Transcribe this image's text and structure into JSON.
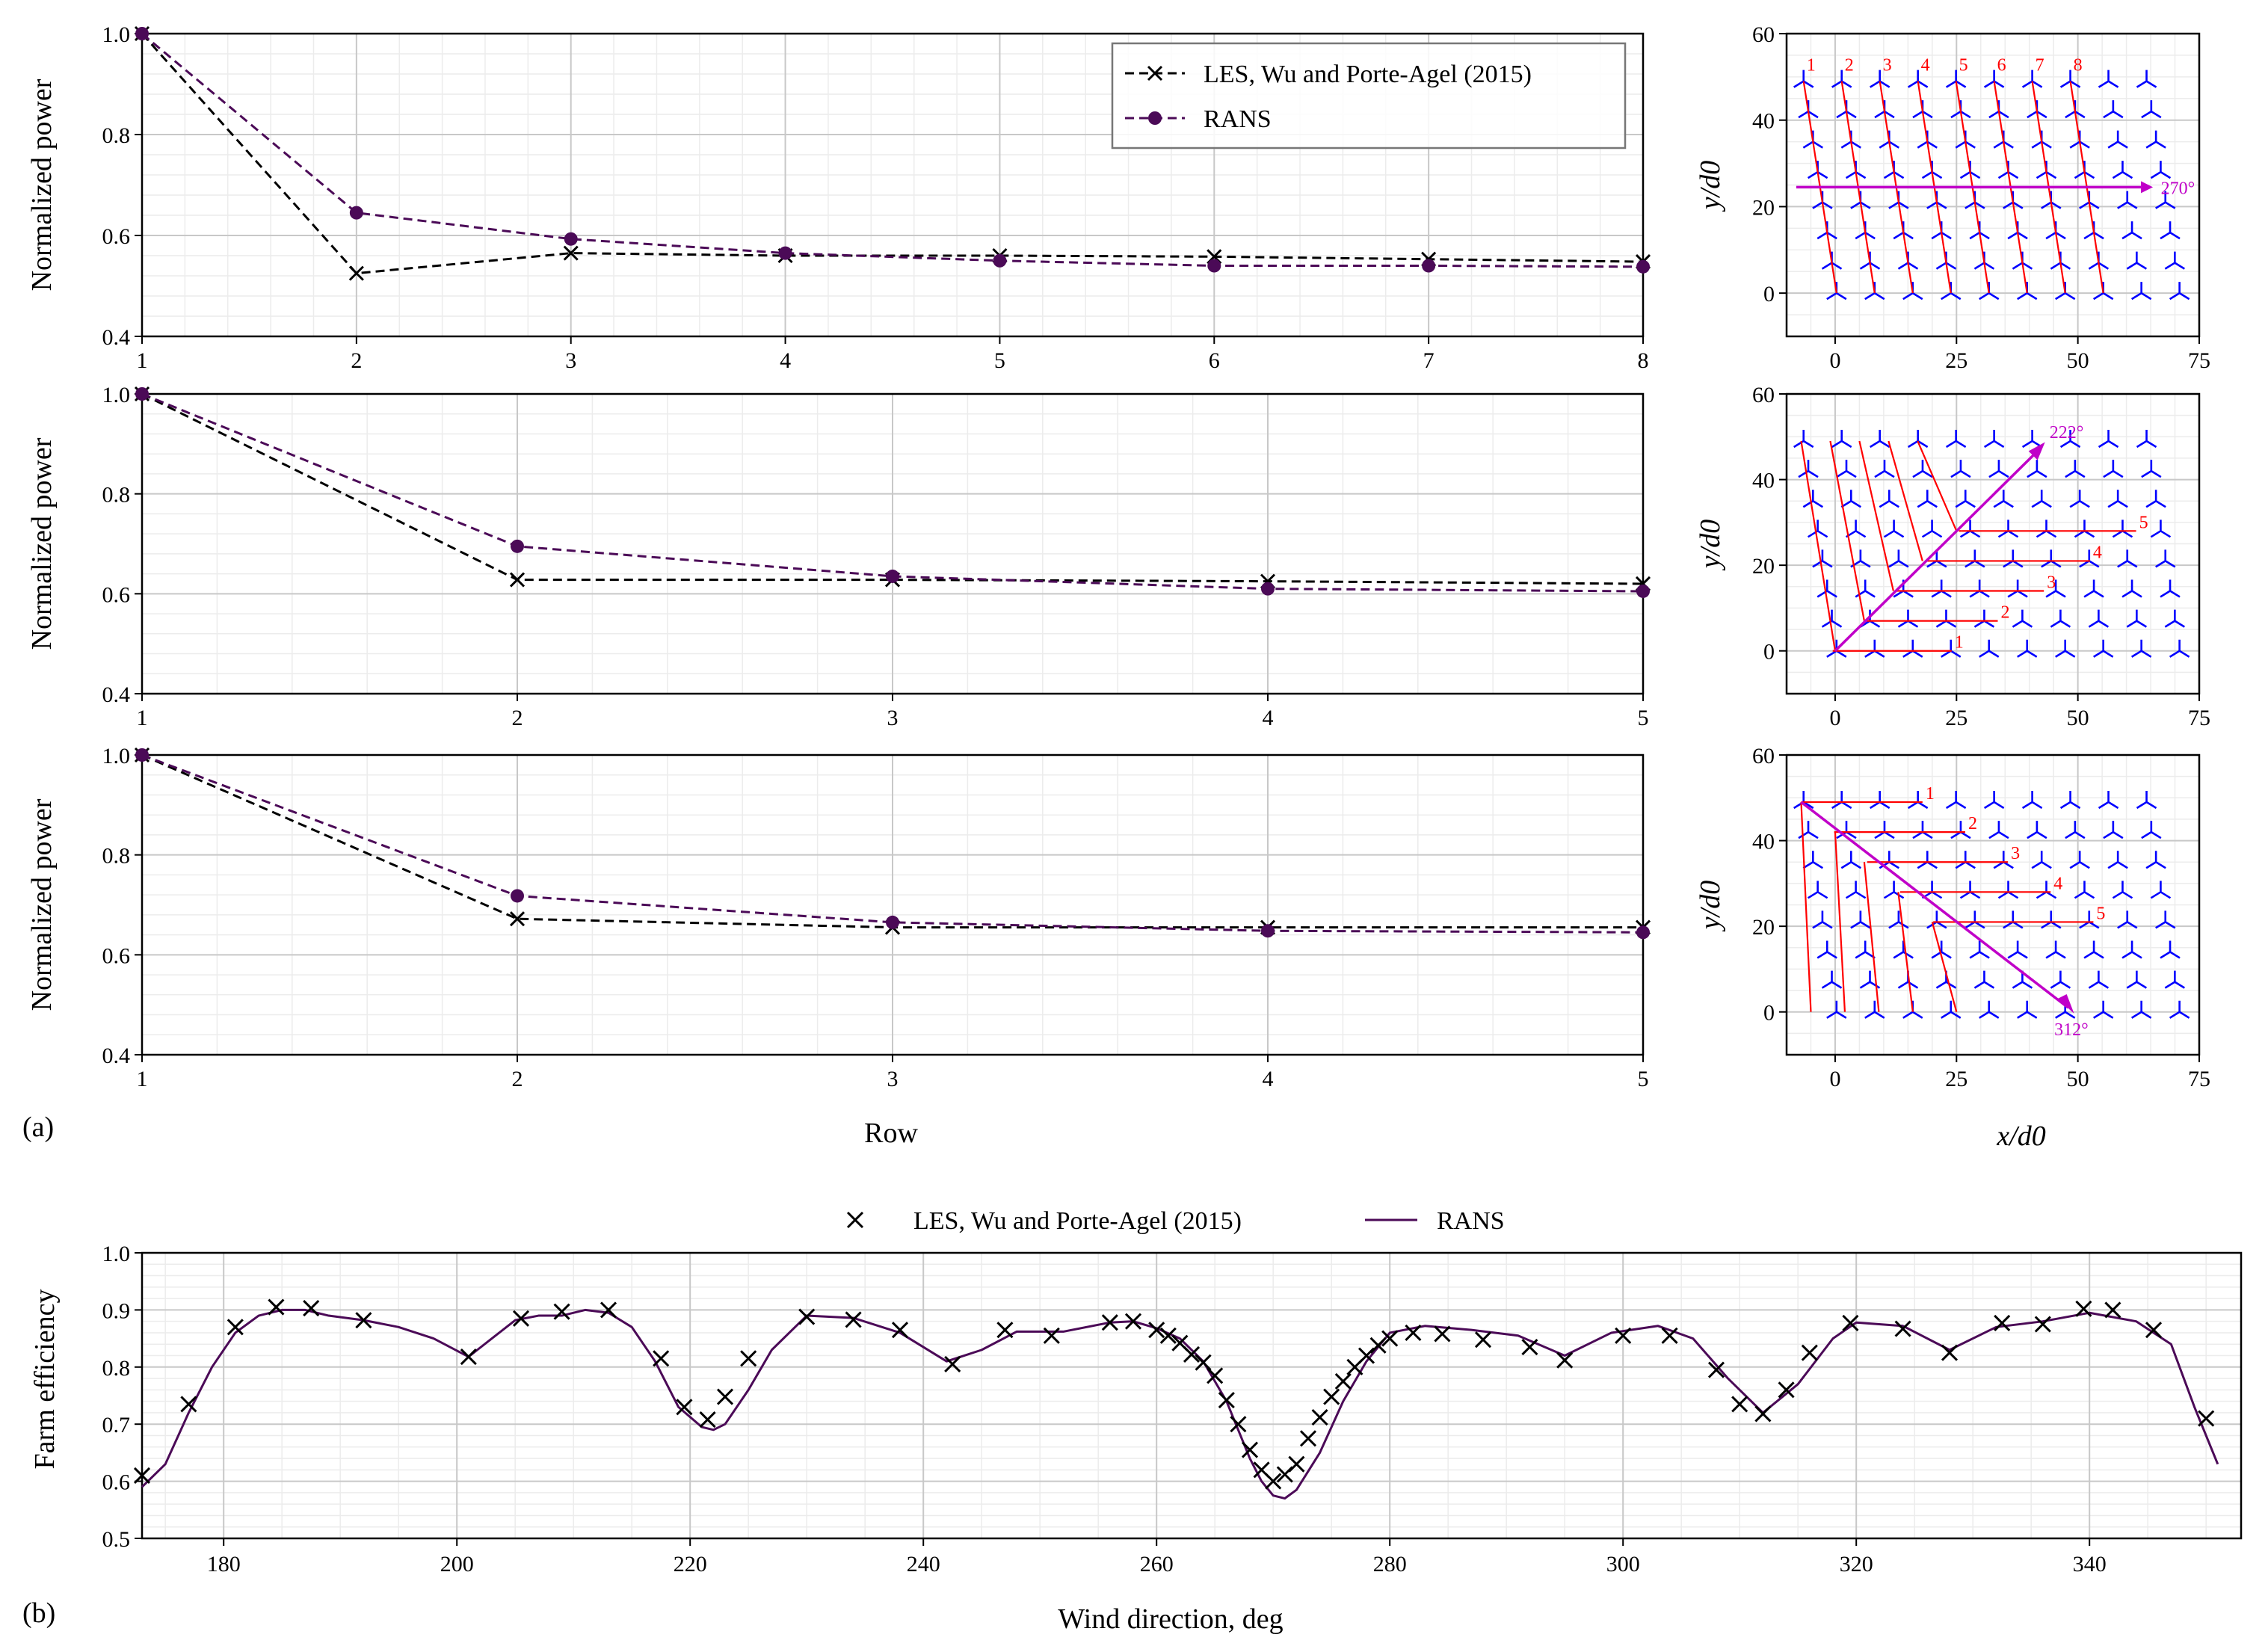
{
  "panel_labels": [
    "(a)",
    "(b)"
  ],
  "colors": {
    "les": "#000000",
    "rans": "#4b0a57",
    "turbine": "#0000ff",
    "row_line": "#ff0000",
    "wind_arrow": "#c000c8"
  },
  "chart_data": [
    {
      "type": "line",
      "id": "power-270",
      "ylabel": "Normalized power",
      "xlabel": "",
      "xlim": [
        1,
        8
      ],
      "ylim": [
        0.4,
        1.0
      ],
      "xticks": [
        1,
        2,
        3,
        4,
        5,
        6,
        7,
        8
      ],
      "yticks": [
        "0.4",
        "0.6",
        "0.8",
        "1.0"
      ],
      "x": [
        1,
        2,
        3,
        4,
        5,
        6,
        7,
        8
      ],
      "series": [
        {
          "name": "LES, Wu and Porte-Agel (2015)",
          "marker": "x",
          "values": [
            1.0,
            0.525,
            0.565,
            0.56,
            0.56,
            0.558,
            0.553,
            0.548
          ]
        },
        {
          "name": "RANS",
          "marker": "o",
          "values": [
            1.0,
            0.645,
            0.593,
            0.565,
            0.55,
            0.54,
            0.54,
            0.538
          ]
        }
      ],
      "legend": {
        "position": "top-right",
        "entries": [
          "LES, Wu and Porte-Agel (2015)",
          "RANS"
        ]
      }
    },
    {
      "type": "line",
      "id": "power-222",
      "ylabel": "Normalized power",
      "xlabel": "",
      "xlim": [
        1,
        5
      ],
      "ylim": [
        0.4,
        1.0
      ],
      "xticks": [
        1,
        2,
        3,
        4,
        5
      ],
      "yticks": [
        "0.4",
        "0.6",
        "0.8",
        "1.0"
      ],
      "x": [
        1,
        2,
        3,
        4,
        5
      ],
      "series": [
        {
          "name": "LES, Wu and Porte-Agel (2015)",
          "marker": "x",
          "values": [
            1.0,
            0.628,
            0.628,
            0.625,
            0.62
          ]
        },
        {
          "name": "RANS",
          "marker": "o",
          "values": [
            1.0,
            0.695,
            0.635,
            0.61,
            0.605
          ]
        }
      ]
    },
    {
      "type": "line",
      "id": "power-312",
      "ylabel": "Normalized power",
      "xlabel": "Row",
      "xlim": [
        1,
        5
      ],
      "ylim": [
        0.4,
        1.0
      ],
      "xticks": [
        1,
        2,
        3,
        4,
        5
      ],
      "yticks": [
        "0.4",
        "0.6",
        "0.8",
        "1.0"
      ],
      "x": [
        1,
        2,
        3,
        4,
        5
      ],
      "series": [
        {
          "name": "LES, Wu and Porte-Agel (2015)",
          "marker": "x",
          "values": [
            1.0,
            0.672,
            0.655,
            0.655,
            0.655
          ]
        },
        {
          "name": "RANS",
          "marker": "o",
          "values": [
            1.0,
            0.718,
            0.665,
            0.648,
            0.645
          ]
        }
      ]
    },
    {
      "type": "scatter",
      "id": "layout-270",
      "xlabel": "",
      "ylabel": "y/d0",
      "xlim": [
        -10,
        75
      ],
      "ylim": [
        -10,
        60
      ],
      "xticks": [
        "0",
        "25",
        "50",
        "75"
      ],
      "yticks": [
        "0",
        "20",
        "40",
        "60"
      ],
      "wind_direction_label": "270°",
      "row_labels": [
        "1",
        "2",
        "3",
        "4",
        "5",
        "6",
        "7",
        "8"
      ]
    },
    {
      "type": "scatter",
      "id": "layout-222",
      "xlabel": "",
      "ylabel": "y/d0",
      "xlim": [
        -10,
        75
      ],
      "ylim": [
        -10,
        60
      ],
      "xticks": [
        "0",
        "25",
        "50",
        "75"
      ],
      "yticks": [
        "0",
        "20",
        "40",
        "60"
      ],
      "wind_direction_label": "222°",
      "row_labels": [
        "1",
        "2",
        "3",
        "4",
        "5"
      ]
    },
    {
      "type": "scatter",
      "id": "layout-312",
      "xlabel": "x/d0",
      "ylabel": "y/d0",
      "xlim": [
        -10,
        75
      ],
      "ylim": [
        -10,
        60
      ],
      "xticks": [
        "0",
        "25",
        "50",
        "75"
      ],
      "yticks": [
        "0",
        "20",
        "40",
        "60"
      ],
      "wind_direction_label": "312°",
      "row_labels": [
        "1",
        "2",
        "3",
        "4",
        "5"
      ]
    },
    {
      "type": "line",
      "id": "farm-efficiency",
      "ylabel": "Farm efficiency",
      "xlabel": "Wind direction, deg",
      "xlim": [
        173,
        353
      ],
      "ylim": [
        0.5,
        1.0
      ],
      "xticks": [
        "180",
        "200",
        "220",
        "240",
        "260",
        "280",
        "300",
        "320",
        "340"
      ],
      "yticks": [
        "0.5",
        "0.6",
        "0.7",
        "0.8",
        "0.9",
        "1.0"
      ],
      "legend": {
        "position": "top-center",
        "entries": [
          "LES, Wu and Porte-Agel (2015)",
          "RANS"
        ]
      },
      "series": [
        {
          "name": "LES, Wu and Porte-Agel (2015)",
          "marker": "x",
          "x": [
            173,
            177,
            181,
            184.5,
            187.5,
            192,
            201,
            205.5,
            209,
            213,
            217.5,
            219.5,
            221.5,
            223,
            225,
            230,
            234,
            238,
            242.5,
            247,
            251,
            256,
            258,
            260,
            261,
            262,
            263,
            264,
            265,
            266,
            267,
            268,
            269,
            270,
            271,
            272,
            273,
            274,
            275,
            276,
            277,
            278,
            279,
            280,
            282,
            284.5,
            288,
            292,
            295,
            300,
            304,
            308,
            310,
            312,
            314,
            316,
            319.5,
            324,
            328,
            332.5,
            336,
            339.5,
            342,
            345.5,
            350
          ],
          "y": [
            0.61,
            0.735,
            0.87,
            0.905,
            0.903,
            0.882,
            0.818,
            0.885,
            0.897,
            0.9,
            0.815,
            0.73,
            0.708,
            0.748,
            0.815,
            0.888,
            0.883,
            0.865,
            0.805,
            0.865,
            0.855,
            0.878,
            0.88,
            0.865,
            0.855,
            0.842,
            0.822,
            0.808,
            0.785,
            0.742,
            0.7,
            0.655,
            0.62,
            0.6,
            0.612,
            0.63,
            0.675,
            0.712,
            0.748,
            0.775,
            0.8,
            0.82,
            0.838,
            0.85,
            0.86,
            0.858,
            0.848,
            0.835,
            0.812,
            0.855,
            0.855,
            0.795,
            0.735,
            0.718,
            0.76,
            0.825,
            0.877,
            0.867,
            0.825,
            0.877,
            0.875,
            0.902,
            0.9,
            0.865,
            0.71
          ]
        },
        {
          "name": "RANS",
          "marker": "none",
          "x": [
            173,
            175,
            177,
            179,
            181,
            183,
            185,
            187,
            189,
            192,
            195,
            198,
            201,
            203,
            205,
            207,
            209,
            211,
            213,
            215,
            217,
            219,
            221,
            222,
            223,
            225,
            227,
            230,
            234,
            238,
            242,
            245,
            248,
            252,
            256,
            258,
            260,
            262,
            264,
            266,
            268,
            269,
            270,
            271,
            272,
            274,
            276,
            278,
            280,
            283,
            287,
            291,
            295,
            299,
            303,
            306,
            309,
            312,
            315,
            318,
            320,
            324,
            328,
            332,
            336,
            340,
            344,
            347,
            349,
            351
          ],
          "y": [
            0.59,
            0.63,
            0.72,
            0.8,
            0.86,
            0.89,
            0.9,
            0.9,
            0.89,
            0.882,
            0.87,
            0.85,
            0.818,
            0.85,
            0.882,
            0.89,
            0.89,
            0.9,
            0.895,
            0.87,
            0.81,
            0.73,
            0.695,
            0.69,
            0.7,
            0.76,
            0.83,
            0.89,
            0.886,
            0.86,
            0.81,
            0.83,
            0.862,
            0.862,
            0.878,
            0.88,
            0.868,
            0.85,
            0.81,
            0.74,
            0.64,
            0.6,
            0.575,
            0.57,
            0.585,
            0.65,
            0.74,
            0.81,
            0.86,
            0.872,
            0.865,
            0.855,
            0.82,
            0.86,
            0.872,
            0.85,
            0.78,
            0.72,
            0.77,
            0.85,
            0.878,
            0.872,
            0.83,
            0.87,
            0.88,
            0.895,
            0.88,
            0.84,
            0.73,
            0.63
          ]
        }
      ]
    }
  ]
}
